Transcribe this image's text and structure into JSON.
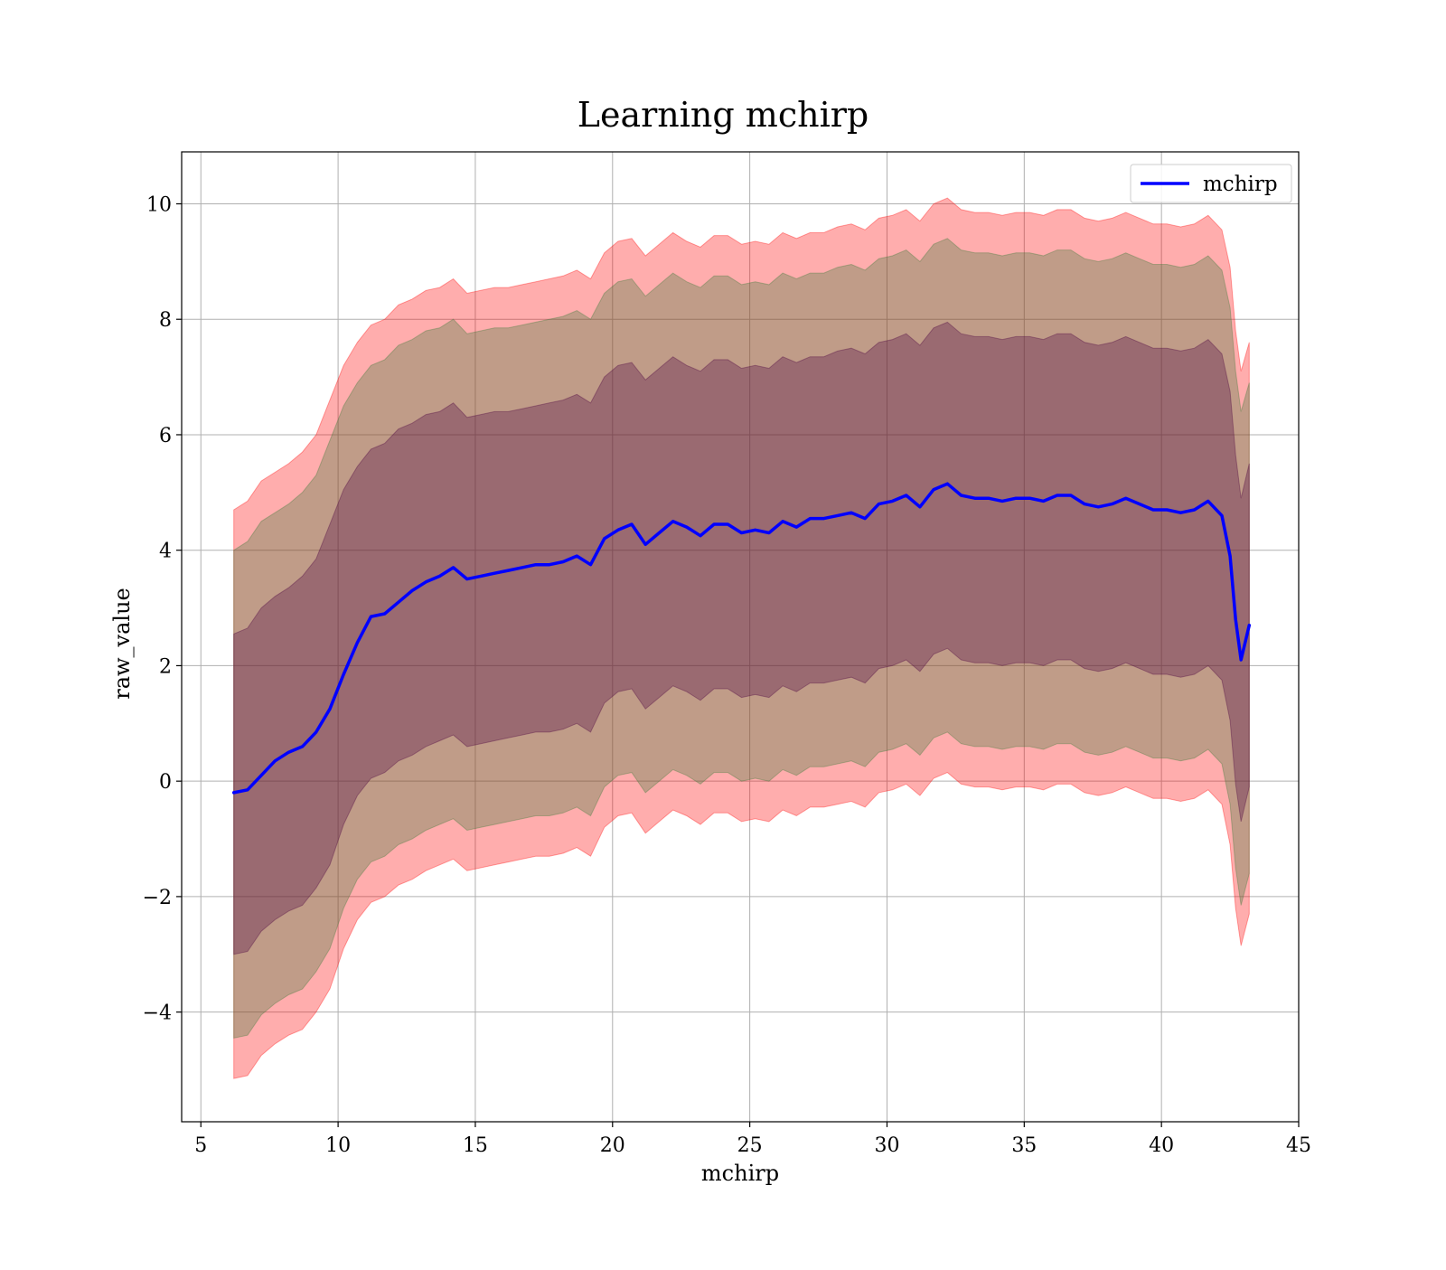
{
  "chart_data": {
    "type": "line",
    "title": "Learning mchirp",
    "xlabel": "mchirp",
    "ylabel": "raw_value",
    "xlim": [
      4.3,
      45
    ],
    "ylim": [
      -5.9,
      10.9
    ],
    "xticks": [
      5,
      10,
      15,
      20,
      25,
      30,
      35,
      40,
      45
    ],
    "yticks": [
      -4,
      -2,
      0,
      2,
      4,
      6,
      8,
      10
    ],
    "xtick_labels": [
      "5",
      "10",
      "15",
      "20",
      "25",
      "30",
      "35",
      "40",
      "45"
    ],
    "ytick_labels": [
      "−4",
      "−2",
      "0",
      "2",
      "4",
      "6",
      "8",
      "10"
    ],
    "grid": true,
    "legend_position": "top-right",
    "series": [
      {
        "name": "mchirp",
        "color": "#0000ff",
        "x": [
          6.2,
          6.7,
          7.2,
          7.7,
          8.2,
          8.7,
          9.2,
          9.7,
          10.2,
          10.7,
          11.2,
          11.7,
          12.2,
          12.7,
          13.2,
          13.7,
          14.2,
          14.7,
          15.2,
          15.7,
          16.2,
          16.7,
          17.2,
          17.7,
          18.2,
          18.7,
          19.2,
          19.7,
          20.2,
          20.7,
          21.2,
          21.7,
          22.2,
          22.7,
          23.2,
          23.7,
          24.2,
          24.7,
          25.2,
          25.7,
          26.2,
          26.7,
          27.2,
          27.7,
          28.2,
          28.7,
          29.2,
          29.7,
          30.2,
          30.7,
          31.2,
          31.7,
          32.2,
          32.7,
          33.2,
          33.7,
          34.2,
          34.7,
          35.2,
          35.7,
          36.2,
          36.7,
          37.2,
          37.7,
          38.2,
          38.7,
          39.2,
          39.7,
          40.2,
          40.7,
          41.2,
          41.7,
          42.2,
          42.5,
          42.7,
          42.9,
          43.2
        ],
        "y": [
          -0.2,
          -0.15,
          0.1,
          0.35,
          0.5,
          0.6,
          0.85,
          1.25,
          1.85,
          2.4,
          2.85,
          2.9,
          3.1,
          3.3,
          3.45,
          3.55,
          3.7,
          3.5,
          3.55,
          3.6,
          3.65,
          3.7,
          3.75,
          3.75,
          3.8,
          3.9,
          3.75,
          4.2,
          4.35,
          4.45,
          4.1,
          4.3,
          4.5,
          4.4,
          4.25,
          4.45,
          4.45,
          4.3,
          4.35,
          4.3,
          4.5,
          4.4,
          4.55,
          4.55,
          4.6,
          4.65,
          4.55,
          4.8,
          4.85,
          4.95,
          4.75,
          5.05,
          5.15,
          4.95,
          4.9,
          4.9,
          4.85,
          4.9,
          4.9,
          4.85,
          4.95,
          4.95,
          4.8,
          4.75,
          4.8,
          4.9,
          4.8,
          4.7,
          4.7,
          4.65,
          4.7,
          4.85,
          4.6,
          3.9,
          2.8,
          2.1,
          2.7
        ]
      }
    ],
    "bands": [
      {
        "color": "#ff0000",
        "opacity": 0.32,
        "x": [
          6.2,
          6.7,
          7.2,
          7.7,
          8.2,
          8.7,
          9.2,
          9.7,
          10.2,
          10.7,
          11.2,
          11.7,
          12.2,
          12.7,
          13.2,
          13.7,
          14.2,
          14.7,
          15.2,
          15.7,
          16.2,
          16.7,
          17.2,
          17.7,
          18.2,
          18.7,
          19.2,
          19.7,
          20.2,
          20.7,
          21.2,
          21.7,
          22.2,
          22.7,
          23.2,
          23.7,
          24.2,
          24.7,
          25.2,
          25.7,
          26.2,
          26.7,
          27.2,
          27.7,
          28.2,
          28.7,
          29.2,
          29.7,
          30.2,
          30.7,
          31.2,
          31.7,
          32.2,
          32.7,
          33.2,
          33.7,
          34.2,
          34.7,
          35.2,
          35.7,
          36.2,
          36.7,
          37.2,
          37.7,
          38.2,
          38.7,
          39.2,
          39.7,
          40.2,
          40.7,
          41.2,
          41.7,
          42.2,
          42.5,
          42.7,
          42.9,
          43.2
        ],
        "upper": [
          4.7,
          4.85,
          5.2,
          5.35,
          5.5,
          5.7,
          6.0,
          6.6,
          7.2,
          7.6,
          7.9,
          8.0,
          8.25,
          8.35,
          8.5,
          8.55,
          8.7,
          8.45,
          8.5,
          8.55,
          8.55,
          8.6,
          8.65,
          8.7,
          8.75,
          8.85,
          8.7,
          9.15,
          9.35,
          9.4,
          9.1,
          9.3,
          9.5,
          9.35,
          9.25,
          9.45,
          9.45,
          9.3,
          9.35,
          9.3,
          9.5,
          9.4,
          9.5,
          9.5,
          9.6,
          9.65,
          9.55,
          9.75,
          9.8,
          9.9,
          9.7,
          10.0,
          10.1,
          9.9,
          9.85,
          9.85,
          9.8,
          9.85,
          9.85,
          9.8,
          9.9,
          9.9,
          9.75,
          9.7,
          9.75,
          9.85,
          9.75,
          9.65,
          9.65,
          9.6,
          9.65,
          9.8,
          9.55,
          8.9,
          7.8,
          7.1,
          7.6
        ],
        "lower": [
          -5.15,
          -5.1,
          -4.75,
          -4.55,
          -4.4,
          -4.3,
          -4.0,
          -3.6,
          -2.9,
          -2.4,
          -2.1,
          -2.0,
          -1.8,
          -1.7,
          -1.55,
          -1.45,
          -1.35,
          -1.55,
          -1.5,
          -1.45,
          -1.4,
          -1.35,
          -1.3,
          -1.3,
          -1.25,
          -1.15,
          -1.3,
          -0.8,
          -0.6,
          -0.55,
          -0.9,
          -0.7,
          -0.5,
          -0.6,
          -0.75,
          -0.55,
          -0.55,
          -0.7,
          -0.65,
          -0.7,
          -0.5,
          -0.6,
          -0.45,
          -0.45,
          -0.4,
          -0.35,
          -0.45,
          -0.2,
          -0.15,
          -0.05,
          -0.25,
          0.05,
          0.15,
          -0.05,
          -0.1,
          -0.1,
          -0.15,
          -0.1,
          -0.1,
          -0.15,
          -0.05,
          -0.05,
          -0.2,
          -0.25,
          -0.2,
          -0.1,
          -0.2,
          -0.3,
          -0.3,
          -0.35,
          -0.3,
          -0.15,
          -0.4,
          -1.1,
          -2.2,
          -2.85,
          -2.3
        ]
      },
      {
        "color": "#3a7a3a",
        "opacity": 0.32,
        "x": [
          6.2,
          6.7,
          7.2,
          7.7,
          8.2,
          8.7,
          9.2,
          9.7,
          10.2,
          10.7,
          11.2,
          11.7,
          12.2,
          12.7,
          13.2,
          13.7,
          14.2,
          14.7,
          15.2,
          15.7,
          16.2,
          16.7,
          17.2,
          17.7,
          18.2,
          18.7,
          19.2,
          19.7,
          20.2,
          20.7,
          21.2,
          21.7,
          22.2,
          22.7,
          23.2,
          23.7,
          24.2,
          24.7,
          25.2,
          25.7,
          26.2,
          26.7,
          27.2,
          27.7,
          28.2,
          28.7,
          29.2,
          29.7,
          30.2,
          30.7,
          31.2,
          31.7,
          32.2,
          32.7,
          33.2,
          33.7,
          34.2,
          34.7,
          35.2,
          35.7,
          36.2,
          36.7,
          37.2,
          37.7,
          38.2,
          38.7,
          39.2,
          39.7,
          40.2,
          40.7,
          41.2,
          41.7,
          42.2,
          42.5,
          42.7,
          42.9,
          43.2
        ],
        "upper": [
          4.0,
          4.15,
          4.5,
          4.65,
          4.8,
          5.0,
          5.3,
          5.9,
          6.5,
          6.9,
          7.2,
          7.3,
          7.55,
          7.65,
          7.8,
          7.85,
          8.0,
          7.75,
          7.8,
          7.85,
          7.85,
          7.9,
          7.95,
          8.0,
          8.05,
          8.15,
          8.0,
          8.45,
          8.65,
          8.7,
          8.4,
          8.6,
          8.8,
          8.65,
          8.55,
          8.75,
          8.75,
          8.6,
          8.65,
          8.6,
          8.8,
          8.7,
          8.8,
          8.8,
          8.9,
          8.95,
          8.85,
          9.05,
          9.1,
          9.2,
          9.0,
          9.3,
          9.4,
          9.2,
          9.15,
          9.15,
          9.1,
          9.15,
          9.15,
          9.1,
          9.2,
          9.2,
          9.05,
          9.0,
          9.05,
          9.15,
          9.05,
          8.95,
          8.95,
          8.9,
          8.95,
          9.1,
          8.85,
          8.2,
          7.1,
          6.4,
          6.9
        ],
        "lower": [
          -4.45,
          -4.4,
          -4.05,
          -3.85,
          -3.7,
          -3.6,
          -3.3,
          -2.9,
          -2.2,
          -1.7,
          -1.4,
          -1.3,
          -1.1,
          -1.0,
          -0.85,
          -0.75,
          -0.65,
          -0.85,
          -0.8,
          -0.75,
          -0.7,
          -0.65,
          -0.6,
          -0.6,
          -0.55,
          -0.45,
          -0.6,
          -0.1,
          0.1,
          0.15,
          -0.2,
          0.0,
          0.2,
          0.1,
          -0.05,
          0.15,
          0.15,
          0.0,
          0.05,
          0.0,
          0.2,
          0.1,
          0.25,
          0.25,
          0.3,
          0.35,
          0.25,
          0.5,
          0.55,
          0.65,
          0.45,
          0.75,
          0.85,
          0.65,
          0.6,
          0.6,
          0.55,
          0.6,
          0.6,
          0.55,
          0.65,
          0.65,
          0.5,
          0.45,
          0.5,
          0.6,
          0.5,
          0.4,
          0.4,
          0.35,
          0.4,
          0.55,
          0.3,
          -0.4,
          -1.5,
          -2.15,
          -1.6
        ]
      },
      {
        "color": "#4b0040",
        "opacity": 0.32,
        "x": [
          6.2,
          6.7,
          7.2,
          7.7,
          8.2,
          8.7,
          9.2,
          9.7,
          10.2,
          10.7,
          11.2,
          11.7,
          12.2,
          12.7,
          13.2,
          13.7,
          14.2,
          14.7,
          15.2,
          15.7,
          16.2,
          16.7,
          17.2,
          17.7,
          18.2,
          18.7,
          19.2,
          19.7,
          20.2,
          20.7,
          21.2,
          21.7,
          22.2,
          22.7,
          23.2,
          23.7,
          24.2,
          24.7,
          25.2,
          25.7,
          26.2,
          26.7,
          27.2,
          27.7,
          28.2,
          28.7,
          29.2,
          29.7,
          30.2,
          30.7,
          31.2,
          31.7,
          32.2,
          32.7,
          33.2,
          33.7,
          34.2,
          34.7,
          35.2,
          35.7,
          36.2,
          36.7,
          37.2,
          37.7,
          38.2,
          38.7,
          39.2,
          39.7,
          40.2,
          40.7,
          41.2,
          41.7,
          42.2,
          42.5,
          42.7,
          42.9,
          43.2
        ],
        "upper": [
          2.55,
          2.65,
          3.0,
          3.2,
          3.35,
          3.55,
          3.85,
          4.45,
          5.05,
          5.45,
          5.75,
          5.85,
          6.1,
          6.2,
          6.35,
          6.4,
          6.55,
          6.3,
          6.35,
          6.4,
          6.4,
          6.45,
          6.5,
          6.55,
          6.6,
          6.7,
          6.55,
          7.0,
          7.2,
          7.25,
          6.95,
          7.15,
          7.35,
          7.2,
          7.1,
          7.3,
          7.3,
          7.15,
          7.2,
          7.15,
          7.35,
          7.25,
          7.35,
          7.35,
          7.45,
          7.5,
          7.4,
          7.6,
          7.65,
          7.75,
          7.55,
          7.85,
          7.95,
          7.75,
          7.7,
          7.7,
          7.65,
          7.7,
          7.7,
          7.65,
          7.75,
          7.75,
          7.6,
          7.55,
          7.6,
          7.7,
          7.6,
          7.5,
          7.5,
          7.45,
          7.5,
          7.65,
          7.4,
          6.75,
          5.65,
          4.9,
          5.5
        ],
        "lower": [
          -3.0,
          -2.95,
          -2.6,
          -2.4,
          -2.25,
          -2.15,
          -1.85,
          -1.45,
          -0.75,
          -0.25,
          0.05,
          0.15,
          0.35,
          0.45,
          0.6,
          0.7,
          0.8,
          0.6,
          0.65,
          0.7,
          0.75,
          0.8,
          0.85,
          0.85,
          0.9,
          1.0,
          0.85,
          1.35,
          1.55,
          1.6,
          1.25,
          1.45,
          1.65,
          1.55,
          1.4,
          1.6,
          1.6,
          1.45,
          1.5,
          1.45,
          1.65,
          1.55,
          1.7,
          1.7,
          1.75,
          1.8,
          1.7,
          1.95,
          2.0,
          2.1,
          1.9,
          2.2,
          2.3,
          2.1,
          2.05,
          2.05,
          2.0,
          2.05,
          2.05,
          2.0,
          2.1,
          2.1,
          1.95,
          1.9,
          1.95,
          2.05,
          1.95,
          1.85,
          1.85,
          1.8,
          1.85,
          2.0,
          1.75,
          1.05,
          -0.05,
          -0.7,
          -0.1
        ]
      }
    ]
  }
}
